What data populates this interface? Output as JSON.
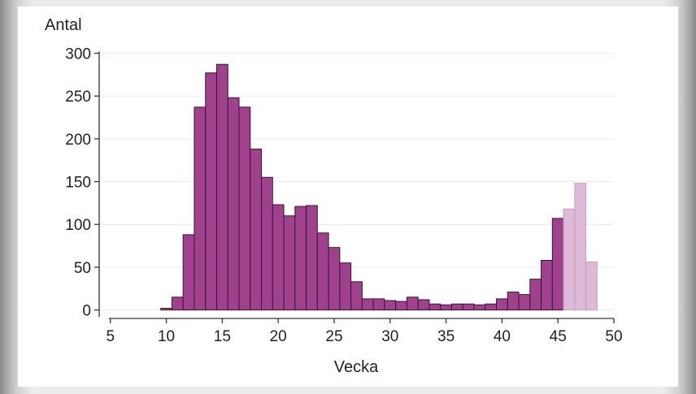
{
  "chart_data": {
    "type": "bar",
    "xlabel": "Vecka",
    "ylabel": "Antal",
    "xlim": [
      4,
      50
    ],
    "ylim": [
      -8,
      310
    ],
    "xticks": [
      5,
      10,
      15,
      20,
      25,
      30,
      35,
      40,
      45,
      50
    ],
    "yticks": [
      0,
      50,
      100,
      150,
      200,
      250,
      300
    ],
    "grid": "horizontal",
    "colors": {
      "bar_fill": "#a0418e",
      "bar_edge": "#3a1536",
      "bar_fill_light": "#dcbad8",
      "bar_edge_light": "#c79ec2"
    },
    "series": [
      {
        "values": [
          {
            "x": 10,
            "y": 2
          },
          {
            "x": 11,
            "y": 15
          },
          {
            "x": 12,
            "y": 88
          },
          {
            "x": 13,
            "y": 237
          },
          {
            "x": 14,
            "y": 277
          },
          {
            "x": 15,
            "y": 287
          },
          {
            "x": 16,
            "y": 248
          },
          {
            "x": 17,
            "y": 237
          },
          {
            "x": 18,
            "y": 188
          },
          {
            "x": 19,
            "y": 155
          },
          {
            "x": 20,
            "y": 123
          },
          {
            "x": 21,
            "y": 110
          },
          {
            "x": 22,
            "y": 121
          },
          {
            "x": 23,
            "y": 122
          },
          {
            "x": 24,
            "y": 90
          },
          {
            "x": 25,
            "y": 73
          },
          {
            "x": 26,
            "y": 55
          },
          {
            "x": 27,
            "y": 33
          },
          {
            "x": 28,
            "y": 13
          },
          {
            "x": 29,
            "y": 13
          },
          {
            "x": 30,
            "y": 11
          },
          {
            "x": 31,
            "y": 10
          },
          {
            "x": 32,
            "y": 15
          },
          {
            "x": 33,
            "y": 12
          },
          {
            "x": 34,
            "y": 7
          },
          {
            "x": 35,
            "y": 6
          },
          {
            "x": 36,
            "y": 7
          },
          {
            "x": 37,
            "y": 7
          },
          {
            "x": 38,
            "y": 6
          },
          {
            "x": 39,
            "y": 7
          },
          {
            "x": 40,
            "y": 13
          },
          {
            "x": 41,
            "y": 21
          },
          {
            "x": 42,
            "y": 18
          },
          {
            "x": 43,
            "y": 36
          },
          {
            "x": 44,
            "y": 58
          },
          {
            "x": 45,
            "y": 107
          }
        ]
      },
      {
        "style": "light",
        "values": [
          {
            "x": 46,
            "y": 118
          },
          {
            "x": 47,
            "y": 148
          },
          {
            "x": 48,
            "y": 56
          }
        ]
      }
    ]
  }
}
